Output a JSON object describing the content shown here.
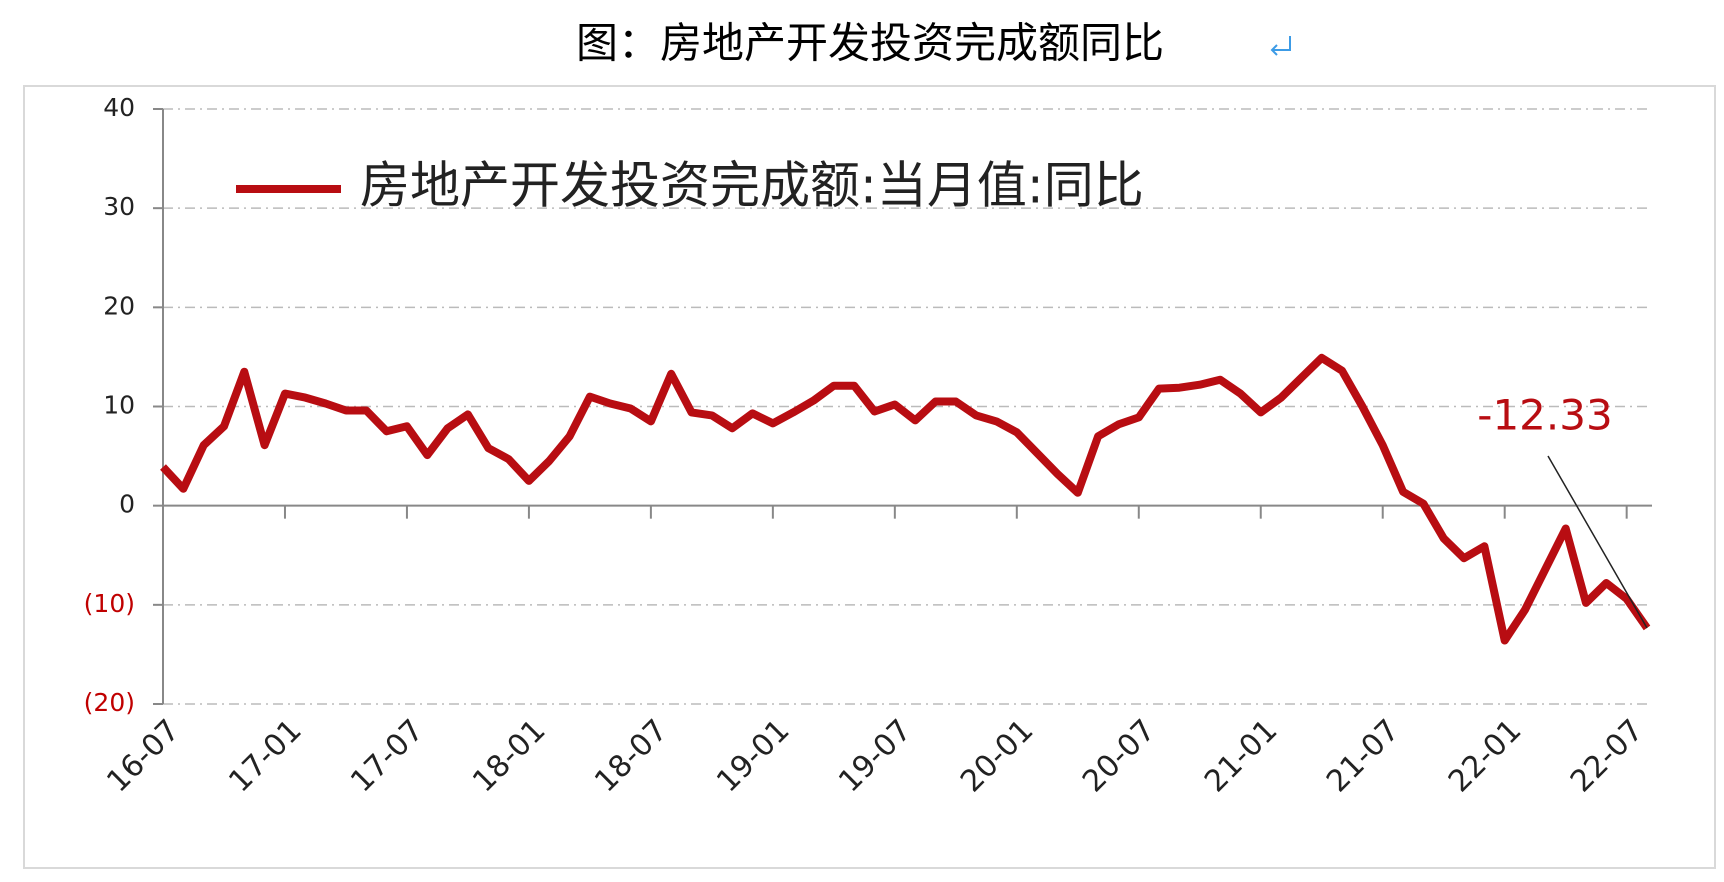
{
  "chart_data": {
    "type": "line",
    "title": "图：房地产开发投资完成额同比",
    "categories": [
      "16-07",
      null,
      null,
      null,
      null,
      null,
      "17-01",
      null,
      null,
      null,
      null,
      null,
      "17-07",
      null,
      null,
      null,
      null,
      null,
      "18-01",
      null,
      null,
      null,
      null,
      null,
      "18-07",
      null,
      null,
      null,
      null,
      null,
      "19-01",
      null,
      null,
      null,
      null,
      null,
      "19-07",
      null,
      null,
      null,
      null,
      null,
      "20-01",
      null,
      null,
      null,
      null,
      null,
      "20-07",
      null,
      null,
      null,
      null,
      null,
      "21-01",
      null,
      null,
      null,
      null,
      null,
      "21-07",
      null,
      null,
      null,
      null,
      null,
      "22-01",
      null,
      null,
      null,
      null,
      null,
      "22-07",
      null
    ],
    "series": [
      {
        "name": "房地产开发投资完成额:当月值:同比",
        "color": "#b80d12",
        "values": [
          3.9,
          1.7,
          6.1,
          8.0,
          13.5,
          6.1,
          11.3,
          10.9,
          10.3,
          9.6,
          9.6,
          7.5,
          8.0,
          5.1,
          7.8,
          9.2,
          5.8,
          4.7,
          2.5,
          4.5,
          7.0,
          11.0,
          10.3,
          9.8,
          8.5,
          13.3,
          9.4,
          9.1,
          7.8,
          9.3,
          8.3,
          9.4,
          10.6,
          12.1,
          12.1,
          9.5,
          10.2,
          8.6,
          10.5,
          10.5,
          9.1,
          8.5,
          7.4,
          5.3,
          3.2,
          1.3,
          7.0,
          8.2,
          8.9,
          11.8,
          11.9,
          12.2,
          12.7,
          11.3,
          9.4,
          10.9,
          12.9,
          14.9,
          13.6,
          10.0,
          6.1,
          1.4,
          0.2,
          -3.3,
          -5.3,
          -4.1,
          -13.6,
          -10.5,
          -6.4,
          -2.3,
          -9.8,
          -7.8,
          -9.4,
          -12.33
        ]
      }
    ],
    "ylim": [
      -20,
      40
    ],
    "yticks": [
      {
        "value": -20,
        "label": "(20)"
      },
      {
        "value": -10,
        "label": "(10)"
      },
      0,
      10,
      20,
      30,
      40
    ],
    "negative_tick_color": "#c00000",
    "grid": true,
    "legend": "top-left"
  }
}
